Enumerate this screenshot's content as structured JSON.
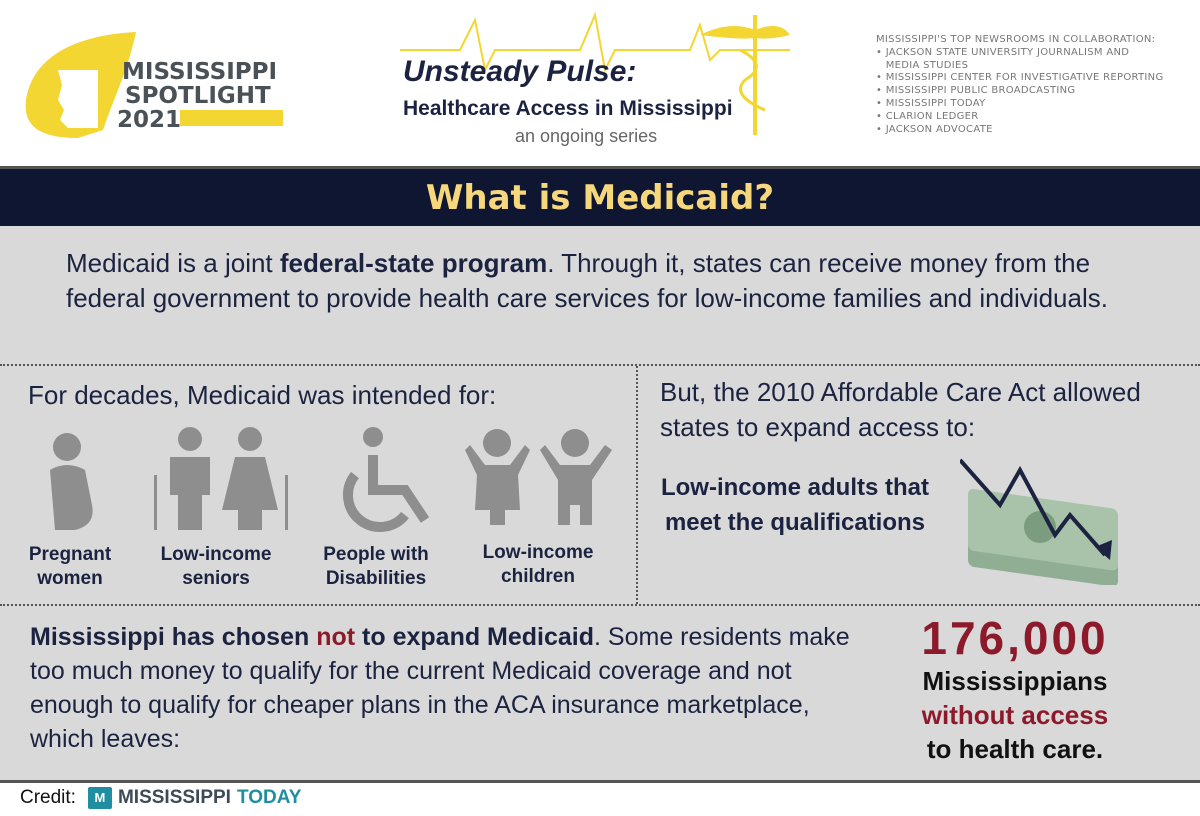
{
  "header": {
    "logo": {
      "line1": "MISSISSIPPI",
      "line2": "SPOTLIGHT",
      "year": "2021",
      "color": "#f3d632"
    },
    "series": {
      "title": "Unsteady Pulse:",
      "subtitle": "Healthcare Access in Mississippi",
      "tagline": "an ongoing series"
    },
    "collaboration": {
      "heading": "MISSISSIPPI'S TOP NEWSROOMS IN COLLABORATION:",
      "items": [
        "JACKSON STATE UNIVERSITY JOURNALISM AND MEDIA STUDIES",
        "MISSISSIPPI CENTER FOR INVESTIGATIVE REPORTING",
        "MISSISSIPPI PUBLIC BROADCASTING",
        "MISSISSIPPI TODAY",
        "CLARION LEDGER",
        "JACKSON ADVOCATE"
      ]
    }
  },
  "title": "What is Medicaid?",
  "intro": {
    "before": "Medicaid is a joint ",
    "bold": "federal-state program",
    "after": ". Through it, states can receive money from the federal government to provide health care services for low-income families and individuals."
  },
  "left": {
    "heading": "For decades, Medicaid was intended for:",
    "groups": [
      {
        "label": "Pregnant women",
        "icon": "pregnant-woman-icon"
      },
      {
        "label": "Low-income seniors",
        "icon": "seniors-icon"
      },
      {
        "label": "People with Disabilities",
        "icon": "wheelchair-icon"
      },
      {
        "label": "Low-income children",
        "icon": "children-icon"
      }
    ]
  },
  "right": {
    "heading": "But, the 2010 Affordable Care Act allowed states to expand access to:",
    "group": "Low-income adults that meet the qualifications",
    "icon": "money-stack-decline-icon"
  },
  "bottom": {
    "bold1": "Mississippi has chosen ",
    "red": "not",
    "bold2": " to expand Medicaid",
    "rest": ". Some residents make too much money to qualify for the current Medicaid coverage and not enough to qualify for cheaper plans in the ACA insurance marketplace, which leaves:",
    "stat": {
      "number": "176,000",
      "line1": "Mississippians",
      "line2": "without access",
      "line3": "to health care."
    }
  },
  "footer": {
    "credit": "Credit:",
    "brand1": "MISSISSIPPI",
    "brand2": "TODAY"
  },
  "colors": {
    "navy": "#0f1632",
    "yellow": "#f6d77c",
    "red": "#8c1a2b",
    "gray": "#d9d9da"
  }
}
